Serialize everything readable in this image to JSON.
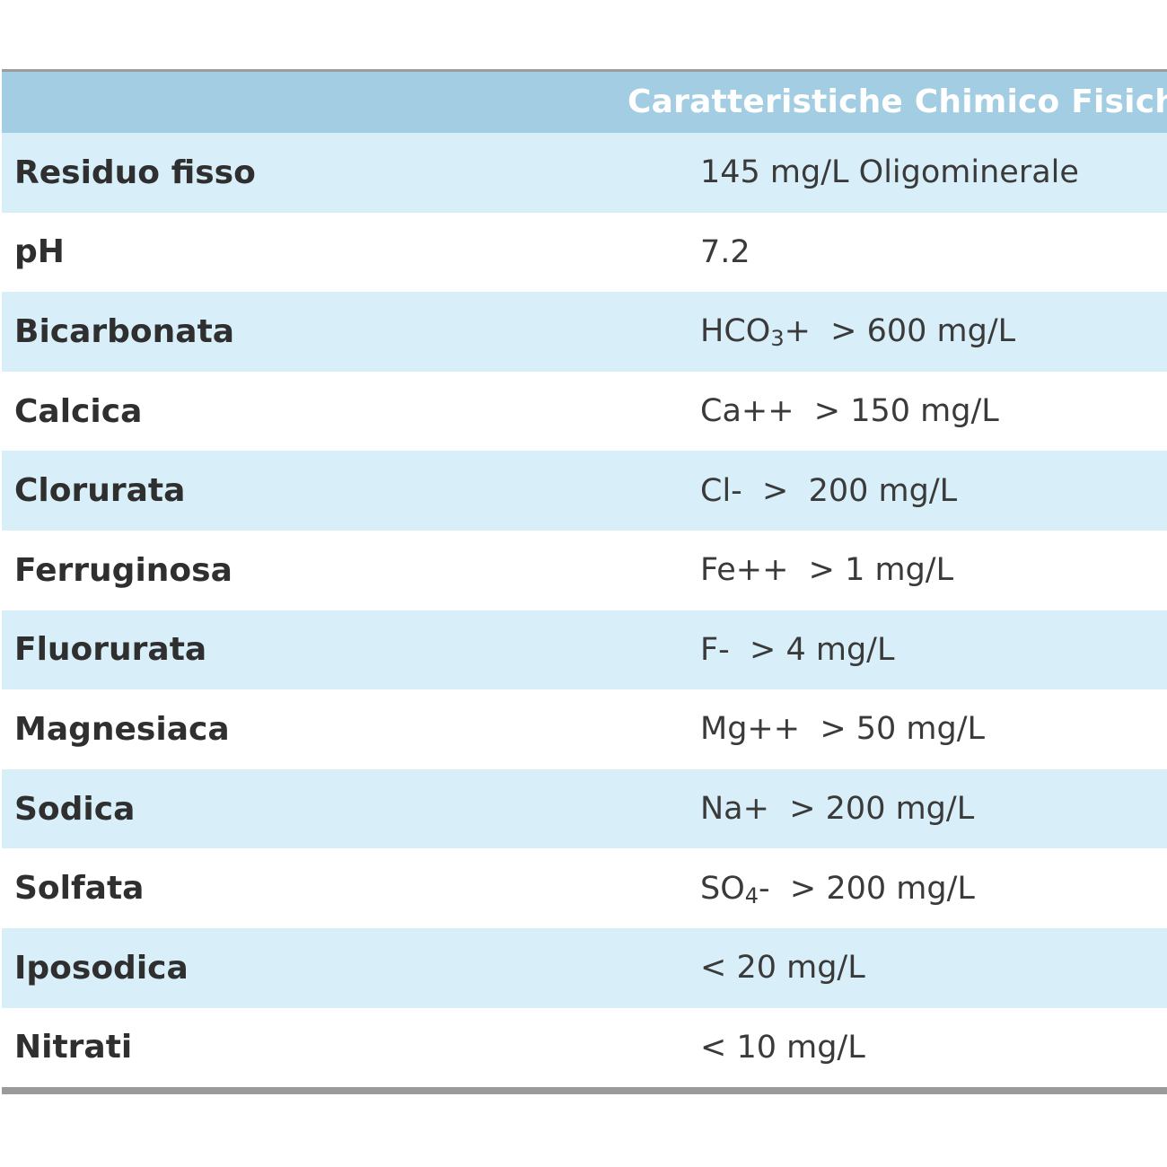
{
  "header": {
    "title": "Caratteristiche Chimico Fisiche"
  },
  "rows": [
    {
      "label": "Residuo fisso",
      "value": "145 mg/L Oligominerale"
    },
    {
      "label": "pH",
      "value": "7.2"
    },
    {
      "label": "Bicarbonata",
      "value_pre": "HCO",
      "value_sub": "3",
      "value_post": "+  > 600 mg/L"
    },
    {
      "label": "Calcica",
      "value": "Ca++  > 150 mg/L"
    },
    {
      "label": "Clorurata",
      "value": "Cl-  >  200 mg/L"
    },
    {
      "label": "Ferruginosa",
      "value": "Fe++  > 1 mg/L"
    },
    {
      "label": "Fluorurata",
      "value": "F-  > 4 mg/L"
    },
    {
      "label": "Magnesiaca",
      "value": "Mg++  > 50 mg/L"
    },
    {
      "label": "Sodica",
      "value": "Na+  > 200 mg/L"
    },
    {
      "label": "Solfata",
      "value_pre": "SO",
      "value_sub": "4",
      "value_post": "-  > 200 mg/L"
    },
    {
      "label": "Iposodica",
      "value": "< 20 mg/L"
    },
    {
      "label": "Nitrati",
      "value": "< 10 mg/L"
    }
  ],
  "colors": {
    "header_bg": "#a2cde3",
    "stripe_bg": "#d8eff9",
    "rule": "#9c9c9c"
  }
}
